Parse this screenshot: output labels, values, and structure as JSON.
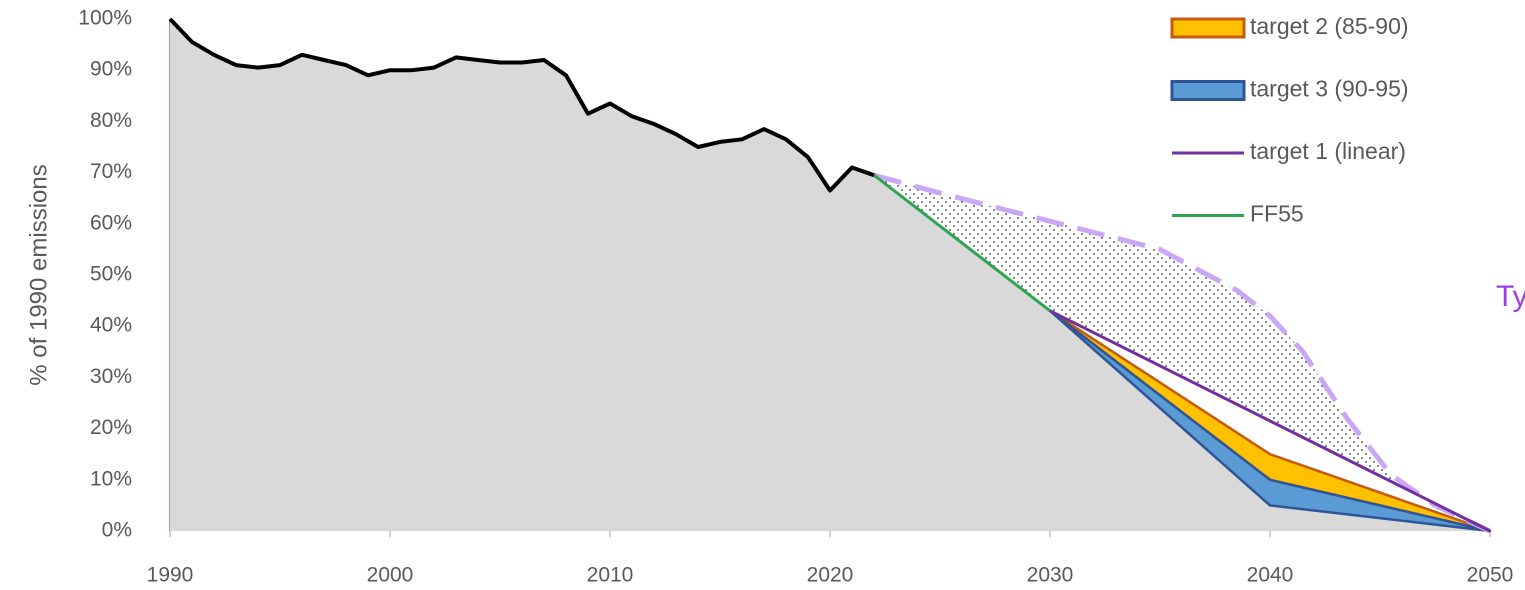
{
  "chart_data": {
    "type": "line",
    "ylabel": "% of 1990 emissions",
    "annotation": "Ty",
    "annotation_color": "#a040e0",
    "xlim": [
      1990,
      2050
    ],
    "xticks": [
      1990,
      2000,
      2010,
      2020,
      2030,
      2040,
      2050
    ],
    "ylim": [
      0,
      100
    ],
    "yticks": [
      {
        "value": 0,
        "label": "0%"
      },
      {
        "value": 10,
        "label": "10%"
      },
      {
        "value": 20,
        "label": "20%"
      },
      {
        "value": 30,
        "label": "30%"
      },
      {
        "value": 40,
        "label": "40%"
      },
      {
        "value": 50,
        "label": "50%"
      },
      {
        "value": 60,
        "label": "60%"
      },
      {
        "value": 70,
        "label": "70%"
      },
      {
        "value": 80,
        "label": "80%"
      },
      {
        "value": 90,
        "label": "90%"
      },
      {
        "value": 100,
        "label": "100%"
      }
    ],
    "grid": true,
    "legend": "upper right",
    "series": [
      {
        "name": "target 2 (85-90)",
        "kind": "band",
        "color": "#ffc000",
        "edge": "#c55a11",
        "x": [
          2030,
          2040,
          2050
        ],
        "values_low": [
          43,
          10,
          0
        ],
        "values_high": [
          43,
          15,
          0
        ]
      },
      {
        "name": "target 3 (90-95)",
        "kind": "band",
        "color": "#5b9bd5",
        "edge": "#2f5597",
        "fill": "#d9d9d9",
        "x": [
          2030,
          2040,
          2050
        ],
        "values_low": [
          43,
          5,
          0
        ],
        "values_high": [
          43,
          10,
          0
        ]
      },
      {
        "name": "target 1 (linear)",
        "kind": "line",
        "color": "#7030a0",
        "x": [
          2030,
          2050
        ],
        "values": [
          43,
          0
        ]
      },
      {
        "name": "FF55",
        "kind": "line",
        "color": "#2ea44f",
        "fill": "#d9d9d9",
        "x": [
          2022,
          2030
        ],
        "values": [
          69.5,
          43
        ]
      },
      {
        "kind": "line",
        "color": "#000000",
        "fill": "#d9d9d9",
        "x": [
          1990,
          1991,
          1992,
          1993,
          1994,
          1995,
          1996,
          1997,
          1998,
          1999,
          2000,
          2001,
          2002,
          2003,
          2004,
          2005,
          2006,
          2007,
          2008,
          2009,
          2010,
          2011,
          2012,
          2013,
          2014,
          2015,
          2016,
          2017,
          2018,
          2019,
          2020,
          2021,
          2022
        ],
        "values": [
          100,
          95.5,
          93,
          91,
          90.5,
          91,
          93,
          92,
          91,
          89,
          90,
          90,
          90.5,
          92.5,
          92,
          91.5,
          91.5,
          92,
          89,
          81.5,
          83.5,
          81,
          79.5,
          77.5,
          75,
          76,
          76.5,
          78.5,
          76.5,
          73,
          66.5,
          71,
          69.5
        ]
      }
    ],
    "envelope": {
      "color": "#c9a7f5",
      "x": [
        2022,
        2025,
        2030,
        2035,
        2038.5,
        2040,
        2041.5,
        2043.5,
        2045.5,
        2047.5,
        2050
      ],
      "values": [
        69.5,
        66,
        60.5,
        55,
        47,
        42,
        35,
        22,
        11,
        5,
        0
      ]
    }
  }
}
